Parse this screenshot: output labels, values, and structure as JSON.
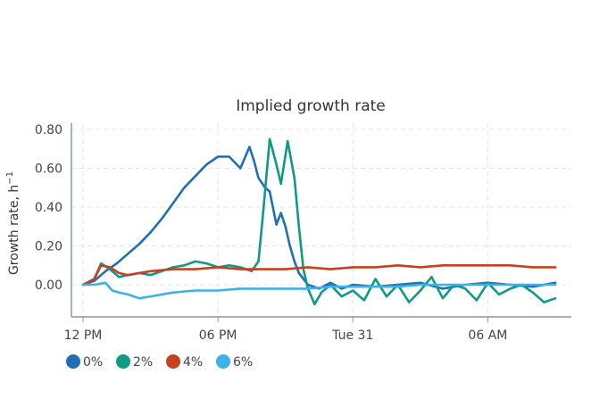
{
  "chart_data": {
    "type": "line",
    "title": "Implied growth rate",
    "ylabel": "Growth rate, h",
    "ylabel_sup": "−1",
    "xlabel": "",
    "xlim": [
      0,
      21.2
    ],
    "ylim": [
      -0.16,
      0.82
    ],
    "y_ticks": [
      0.0,
      0.2,
      0.4,
      0.6,
      0.8
    ],
    "y_tick_labels": [
      "0.00",
      "0.20",
      "0.40",
      "0.60",
      "0.80"
    ],
    "x_ticks": [
      0,
      6,
      12,
      18
    ],
    "x_tick_labels": [
      "12 PM",
      "06 PM",
      "Tue 31",
      "06 AM"
    ],
    "x_unit": "hours after 12 PM",
    "grid": true,
    "legend": "bottom-left",
    "series": [
      {
        "name": "0%",
        "color": "#1f6fb5",
        "x": [
          0,
          0.5,
          1,
          1.5,
          2,
          2.5,
          3,
          3.5,
          4,
          4.5,
          5,
          5.5,
          6,
          6.5,
          7,
          7.4,
          7.6,
          7.8,
          8.1,
          8.3,
          8.6,
          8.8,
          9,
          9.2,
          9.4,
          9.6,
          10,
          10.5,
          11,
          11.5,
          12,
          13,
          14,
          15,
          16,
          17,
          18,
          19,
          20,
          21
        ],
        "y": [
          0,
          0.02,
          0.07,
          0.11,
          0.16,
          0.21,
          0.27,
          0.34,
          0.42,
          0.5,
          0.56,
          0.62,
          0.66,
          0.66,
          0.6,
          0.71,
          0.64,
          0.55,
          0.5,
          0.48,
          0.31,
          0.37,
          0.3,
          0.2,
          0.12,
          0.06,
          0.0,
          -0.02,
          0.01,
          -0.02,
          0.0,
          -0.01,
          0.0,
          0.01,
          -0.02,
          0.0,
          0.01,
          0.0,
          -0.01,
          0.01
        ]
      },
      {
        "name": "2%",
        "color": "#0f9a86",
        "x": [
          0,
          0.5,
          0.8,
          1.2,
          1.6,
          2,
          2.5,
          3,
          3.5,
          4,
          4.5,
          5,
          5.5,
          6,
          6.5,
          7,
          7.5,
          7.8,
          8,
          8.3,
          8.6,
          8.8,
          9.1,
          9.4,
          9.6,
          9.8,
          10,
          10.3,
          10.6,
          11,
          11.5,
          12,
          12.5,
          13,
          13.5,
          14,
          14.5,
          15,
          15.5,
          16,
          16.5,
          17,
          17.5,
          18,
          18.5,
          19,
          19.5,
          20,
          20.5,
          21
        ],
        "y": [
          0,
          0.03,
          0.11,
          0.08,
          0.04,
          0.05,
          0.06,
          0.05,
          0.07,
          0.09,
          0.1,
          0.12,
          0.11,
          0.09,
          0.1,
          0.09,
          0.07,
          0.12,
          0.36,
          0.75,
          0.62,
          0.52,
          0.74,
          0.55,
          0.3,
          0.08,
          -0.02,
          -0.1,
          -0.04,
          0.0,
          -0.06,
          -0.03,
          -0.08,
          0.03,
          -0.06,
          0.0,
          -0.09,
          -0.03,
          0.04,
          -0.07,
          0.0,
          -0.02,
          -0.08,
          0.01,
          -0.05,
          -0.02,
          0.0,
          -0.04,
          -0.09,
          -0.07
        ]
      },
      {
        "name": "4%",
        "color": "#c8401e",
        "x": [
          0,
          0.5,
          0.8,
          1.2,
          1.6,
          2,
          3,
          4,
          5,
          6,
          7,
          8,
          9,
          10,
          11,
          12,
          13,
          14,
          15,
          16,
          17,
          18,
          19,
          20,
          21
        ],
        "y": [
          0,
          0.03,
          0.1,
          0.09,
          0.06,
          0.05,
          0.07,
          0.08,
          0.08,
          0.09,
          0.08,
          0.08,
          0.08,
          0.09,
          0.08,
          0.09,
          0.09,
          0.1,
          0.09,
          0.1,
          0.1,
          0.1,
          0.1,
          0.09,
          0.09
        ]
      },
      {
        "name": "6%",
        "color": "#3cb2e8",
        "x": [
          0,
          0.5,
          1,
          1.3,
          1.6,
          2,
          2.5,
          3,
          3.5,
          4,
          5,
          6,
          7,
          8,
          9,
          10,
          11,
          12,
          13,
          14,
          15,
          16,
          17,
          18,
          19,
          20,
          21
        ],
        "y": [
          0,
          0.0,
          0.01,
          -0.03,
          -0.04,
          -0.05,
          -0.07,
          -0.06,
          -0.05,
          -0.04,
          -0.03,
          -0.03,
          -0.02,
          -0.02,
          -0.02,
          -0.02,
          -0.01,
          -0.01,
          -0.01,
          -0.01,
          0.0,
          0.0,
          0.0,
          0.0,
          0.0,
          0.0,
          0.0
        ]
      }
    ]
  }
}
